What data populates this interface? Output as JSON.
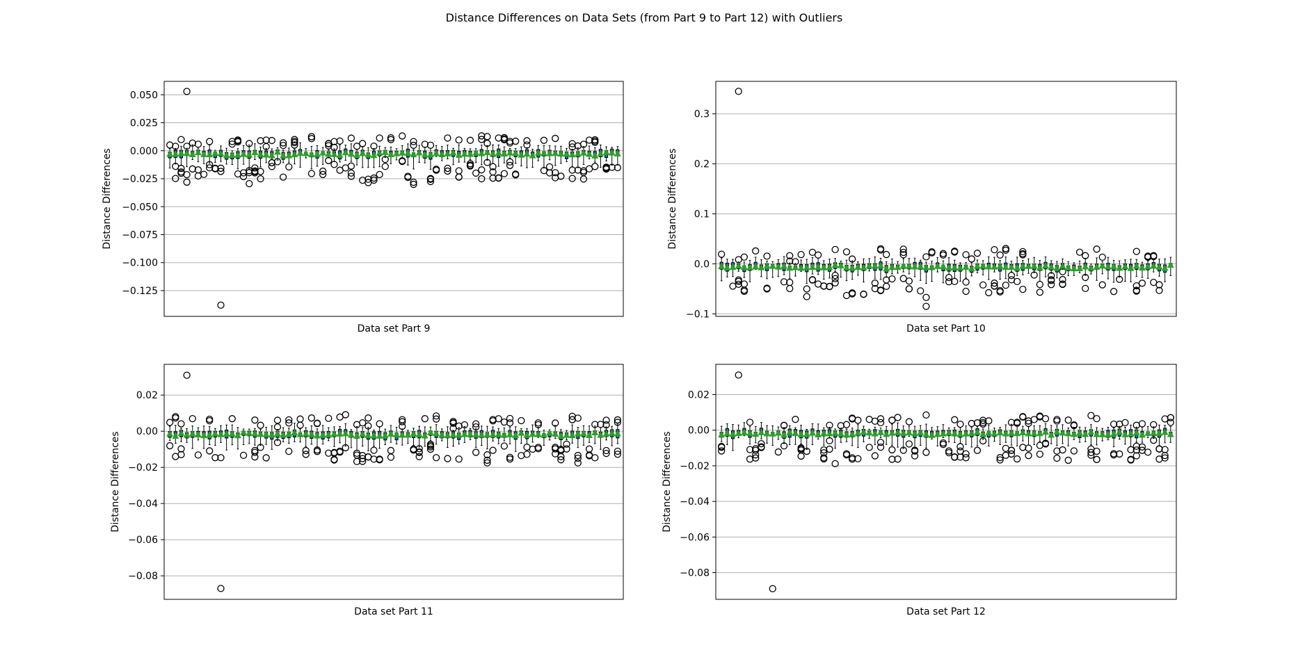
{
  "figure": {
    "suptitle": "Distance Differences on Data Sets (from Part 9 to Part 12) with Outliers"
  },
  "style": {
    "box_fill": "#1f77b4",
    "median_color": "#ff7f0e",
    "mean_marker_color": "#2ca02c",
    "grid_color": "#b0b0b0",
    "outlier_marker": "open-circle"
  },
  "chart_data": [
    {
      "type": "box",
      "xlabel": "Data set Part 9",
      "ylabel": "Distance Differences",
      "ylim": [
        -0.148,
        0.062
      ],
      "yticks": [
        0.05,
        0.025,
        0.0,
        -0.025,
        -0.05,
        -0.075,
        -0.1,
        -0.125
      ],
      "ytick_labels": [
        "0.050",
        "0.025",
        "0.000",
        "−0.025",
        "−0.050",
        "−0.075",
        "−0.100",
        "−0.125"
      ],
      "grid": "horizontal",
      "n_boxes": 80,
      "min_outlier": -0.138,
      "max_outlier": 0.053
    },
    {
      "type": "box",
      "xlabel": "Data set Part 10",
      "ylabel": "Distance Differences",
      "ylim": [
        -0.105,
        0.365
      ],
      "yticks": [
        0.3,
        0.2,
        0.1,
        0.0,
        -0.1
      ],
      "ytick_labels": [
        "0.3",
        "0.2",
        "0.1",
        "0.0",
        "−0.1"
      ],
      "grid": "horizontal",
      "n_boxes": 80,
      "min_outlier": -0.085,
      "max_outlier": 0.345
    },
    {
      "type": "box",
      "xlabel": "Data set Part 11",
      "ylabel": "Distance Differences",
      "ylim": [
        -0.093,
        0.037
      ],
      "yticks": [
        0.02,
        0.0,
        -0.02,
        -0.04,
        -0.06,
        -0.08
      ],
      "ytick_labels": [
        "0.02",
        "0.00",
        "−0.02",
        "−0.04",
        "−0.06",
        "−0.08"
      ],
      "grid": "horizontal",
      "n_boxes": 80,
      "min_outlier": -0.087,
      "max_outlier": 0.031
    },
    {
      "type": "box",
      "xlabel": "Data set Part 12",
      "ylabel": "Distance Differences",
      "ylim": [
        -0.095,
        0.037
      ],
      "yticks": [
        0.02,
        0.0,
        -0.02,
        -0.04,
        -0.06,
        -0.08
      ],
      "ytick_labels": [
        "0.02",
        "0.00",
        "−0.02",
        "−0.04",
        "−0.06",
        "−0.08"
      ],
      "grid": "horizontal",
      "n_boxes": 80,
      "min_outlier": -0.089,
      "max_outlier": 0.031
    }
  ]
}
